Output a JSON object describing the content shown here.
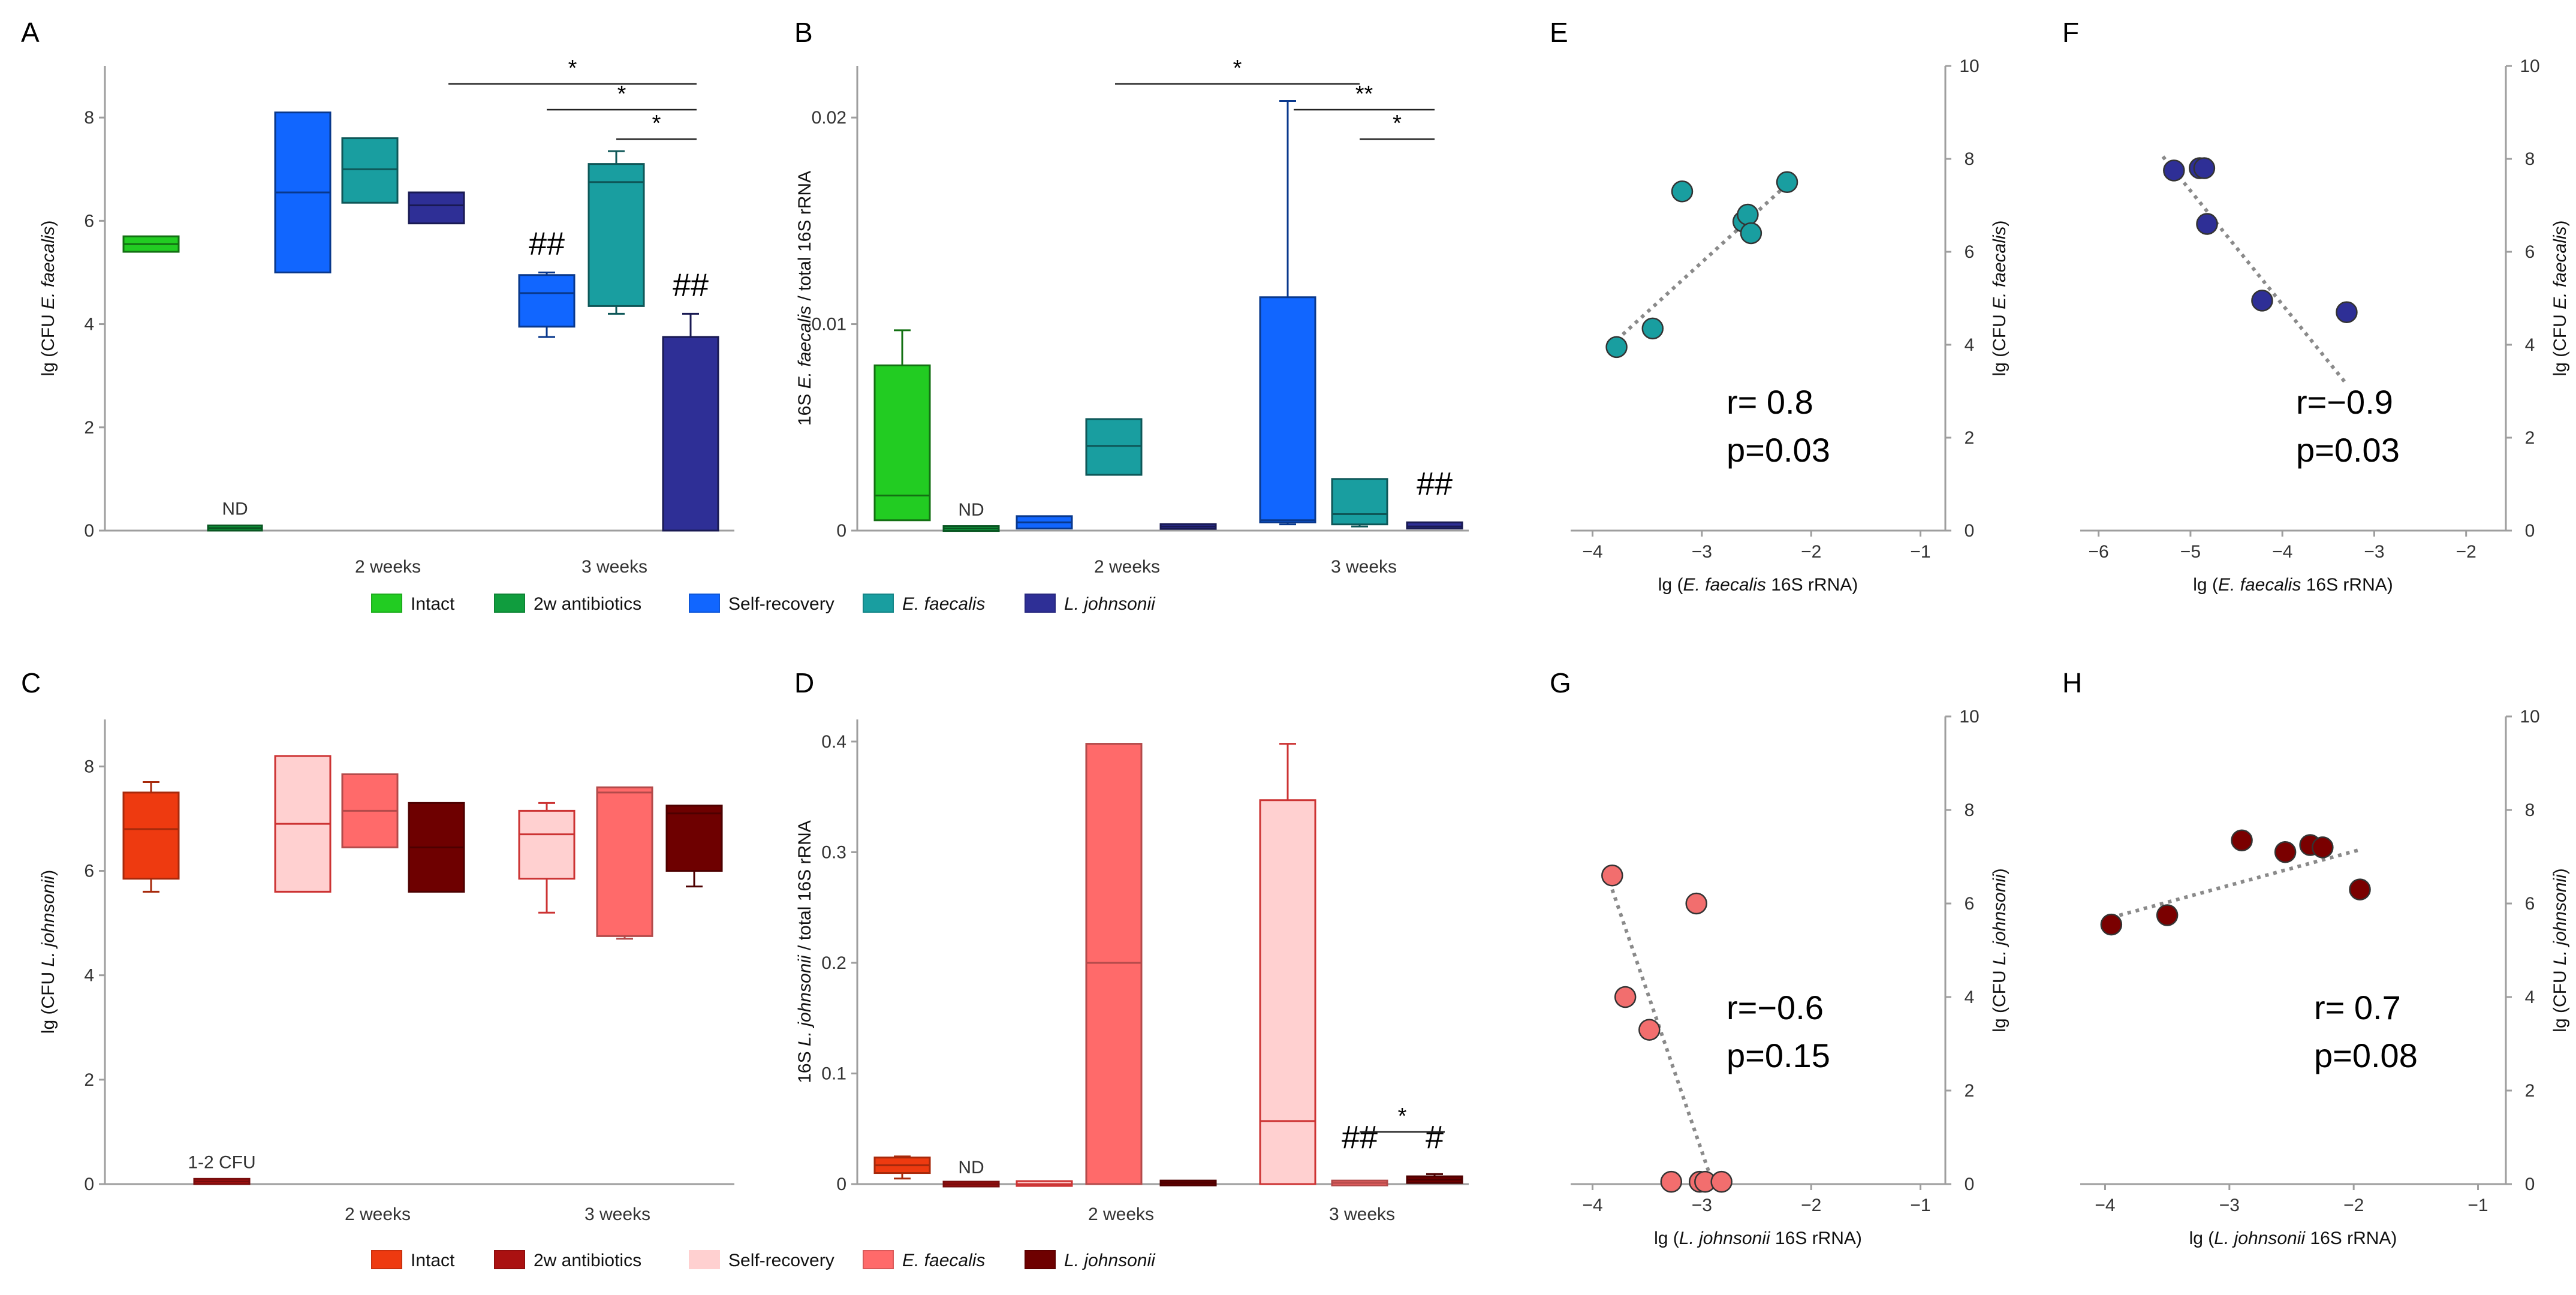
{
  "legend_top": {
    "items": [
      {
        "label": "Intact",
        "color": "#22cc22"
      },
      {
        "label": "2w antibiotics",
        "color": "#109d3e"
      },
      {
        "label": "Self-recovery",
        "color": "#1166ff"
      },
      {
        "label": "E. faecalis",
        "color": "#199ea0",
        "italic": true
      },
      {
        "label": "L. johnsonii",
        "color": "#2e2f96",
        "italic": true
      }
    ]
  },
  "legend_bottom": {
    "items": [
      {
        "label": "Intact",
        "color": "#ee3a10"
      },
      {
        "label": "2w antibiotics",
        "color": "#aa1111"
      },
      {
        "label": "Self-recovery",
        "color": "#ffd0d0"
      },
      {
        "label": "E. faecalis",
        "color": "#ff6a6a",
        "italic": true
      },
      {
        "label": "L. johnsonii",
        "color": "#6e0000",
        "italic": true
      }
    ]
  },
  "chart_data": [
    {
      "panel": "A",
      "type": "box",
      "ylabel": [
        "lg (CFU ",
        "E. faecalis",
        ")"
      ],
      "ylim": [
        0,
        9
      ],
      "yticks": [
        "0",
        "2",
        "4",
        "6",
        "8"
      ],
      "group_labels": [
        "2 weeks",
        "3 weeks"
      ],
      "boxes": [
        {
          "group": "Intact",
          "q1": 5.4,
          "median": 5.55,
          "q3": 5.7,
          "low": 5.4,
          "high": 5.7
        },
        {
          "group": "2w antibiotics",
          "q1": 0,
          "median": 0.05,
          "q3": 0.1,
          "low": 0,
          "high": 0.1,
          "note": "ND"
        },
        {
          "group": "Self-recovery 2w",
          "q1": 5.0,
          "median": 6.55,
          "q3": 8.1,
          "low": 5.0,
          "high": 8.1
        },
        {
          "group": "E. faecalis 2w",
          "q1": 6.35,
          "median": 7.0,
          "q3": 7.6,
          "low": 6.35,
          "high": 7.6
        },
        {
          "group": "L. johnsonii 2w",
          "q1": 5.95,
          "median": 6.3,
          "q3": 6.55,
          "low": 5.95,
          "high": 6.55
        },
        {
          "group": "Self-recovery 3w",
          "q1": 3.95,
          "median": 4.6,
          "q3": 4.95,
          "low": 3.75,
          "high": 5.0,
          "note": "##"
        },
        {
          "group": "E. faecalis 3w",
          "q1": 4.35,
          "median": 6.75,
          "q3": 7.1,
          "low": 4.2,
          "high": 7.35
        },
        {
          "group": "L. johnsonii 3w",
          "q1": 0,
          "median": 0,
          "q3": 3.75,
          "low": 0,
          "high": 4.2,
          "note": "##"
        }
      ],
      "significance": [
        "*",
        "*",
        "*"
      ]
    },
    {
      "panel": "B",
      "type": "box",
      "ylabel": [
        "16S ",
        "E. faecalis",
        " / total 16S rRNA"
      ],
      "ylim": [
        0,
        0.0225
      ],
      "yticks": [
        "0",
        "0.01",
        "0.02"
      ],
      "group_labels": [
        "2 weeks",
        "3 weeks"
      ],
      "boxes": [
        {
          "group": "Intact",
          "q1": 0.0005,
          "median": 0.0017,
          "q3": 0.008,
          "low": 0.0005,
          "high": 0.0097
        },
        {
          "group": "2w antibiotics",
          "q1": 0.0,
          "median": 0.0001,
          "q3": 0.0002,
          "low": 0.0,
          "high": 0.0002,
          "note": "ND"
        },
        {
          "group": "Self-recovery 2w",
          "q1": 0.0001,
          "median": 0.0004,
          "q3": 0.0007,
          "low": 0.0001,
          "high": 0.0007
        },
        {
          "group": "E. faecalis 2w",
          "q1": 0.0027,
          "median": 0.0041,
          "q3": 0.0054,
          "low": 0.0027,
          "high": 0.0054
        },
        {
          "group": "L. johnsonii 2w",
          "q1": 0.0001,
          "median": 0.0002,
          "q3": 0.0003,
          "low": 0.0001,
          "high": 0.0003
        },
        {
          "group": "Self-recovery 3w",
          "q1": 0.0004,
          "median": 0.0005,
          "q3": 0.0113,
          "low": 0.0003,
          "high": 0.0208
        },
        {
          "group": "E. faecalis 3w",
          "q1": 0.0003,
          "median": 0.0008,
          "q3": 0.0025,
          "low": 0.0002,
          "high": 0.0025
        },
        {
          "group": "L. johnsonii 3w",
          "q1": 0.0001,
          "median": 0.0002,
          "q3": 0.0004,
          "low": 0.0001,
          "high": 0.0004,
          "note": "##"
        }
      ],
      "significance": [
        "*",
        "**",
        "*"
      ]
    },
    {
      "panel": "C",
      "type": "box",
      "ylabel": [
        "lg (CFU ",
        "L. johnsonii",
        ")"
      ],
      "ylim": [
        0,
        8.9
      ],
      "yticks": [
        "0",
        "2",
        "4",
        "6",
        "8"
      ],
      "group_labels": [
        "2 weeks",
        "3 weeks"
      ],
      "boxes": [
        {
          "group": "Intact",
          "q1": 5.85,
          "median": 6.8,
          "q3": 7.5,
          "low": 5.6,
          "high": 7.7
        },
        {
          "group": "2w antibiotics",
          "q1": 0,
          "median": 0.05,
          "q3": 0.1,
          "low": 0,
          "high": 0.1,
          "note": "1-2 CFU"
        },
        {
          "group": "Self-recovery 2w",
          "q1": 5.6,
          "median": 6.9,
          "q3": 8.2,
          "low": 5.6,
          "high": 8.2
        },
        {
          "group": "E. faecalis 2w",
          "q1": 6.45,
          "median": 7.15,
          "q3": 7.85,
          "low": 6.45,
          "high": 7.85
        },
        {
          "group": "L. johnsonii 2w",
          "q1": 5.6,
          "median": 6.45,
          "q3": 7.3,
          "low": 5.6,
          "high": 7.3
        },
        {
          "group": "Self-recovery 3w",
          "q1": 5.85,
          "median": 6.7,
          "q3": 7.15,
          "low": 5.2,
          "high": 7.3
        },
        {
          "group": "E. faecalis 3w",
          "q1": 4.75,
          "median": 7.5,
          "q3": 7.6,
          "low": 4.7,
          "high": 7.6
        },
        {
          "group": "L. johnsonii 3w",
          "q1": 6.0,
          "median": 7.1,
          "q3": 7.25,
          "low": 5.7,
          "high": 7.25
        }
      ]
    },
    {
      "panel": "D",
      "type": "box",
      "ylabel": [
        "16S ",
        "L. johnsonii",
        " / total 16S rRNA"
      ],
      "ylim": [
        0,
        0.42
      ],
      "yticks": [
        "0",
        "0.1",
        "0.2",
        "0.3",
        "0.4"
      ],
      "group_labels": [
        "2 weeks",
        "3 weeks"
      ],
      "boxes": [
        {
          "group": "Intact",
          "q1": 0.01,
          "median": 0.017,
          "q3": 0.024,
          "low": 0.005,
          "high": 0.025
        },
        {
          "group": "2w antibiotics",
          "q1": 0.0,
          "median": 0.0,
          "q3": 0.0,
          "low": 0.0,
          "high": 0.0,
          "note": "ND"
        },
        {
          "group": "Self-recovery 2w",
          "q1": 0.0,
          "median": 0.0,
          "q3": 0.001,
          "low": 0.0,
          "high": 0.001
        },
        {
          "group": "E. faecalis 2w",
          "q1": 0.0,
          "median": 0.2,
          "q3": 0.398,
          "low": 0.0,
          "high": 0.398
        },
        {
          "group": "L. johnsonii 2w",
          "q1": 0.0,
          "median": 0.001,
          "q3": 0.002,
          "low": 0.0,
          "high": 0.002
        },
        {
          "group": "Self-recovery 3w",
          "q1": 0.0,
          "median": 0.057,
          "q3": 0.347,
          "low": 0.0,
          "high": 0.398
        },
        {
          "group": "E. faecalis 3w",
          "q1": 0.0,
          "median": 0.001,
          "q3": 0.002,
          "low": 0.0,
          "high": 0.002,
          "note": "##"
        },
        {
          "group": "L. johnsonii 3w",
          "q1": 0.001,
          "median": 0.004,
          "q3": 0.007,
          "low": 0.001,
          "high": 0.009,
          "note": "#"
        }
      ],
      "significance": [
        "*"
      ]
    },
    {
      "panel": "E",
      "type": "scatter",
      "xlabel": [
        "lg (",
        "E. faecalis",
        " 16S rRNA)"
      ],
      "ylabel": [
        "lg (CFU ",
        "E. faecalis",
        ")"
      ],
      "xlim": [
        -4.2,
        -0.8
      ],
      "xticks": [
        "-4",
        "-3",
        "-2",
        "-1"
      ],
      "ylim": [
        0,
        10
      ],
      "yticks": [
        "0",
        "2",
        "4",
        "6",
        "8",
        "10"
      ],
      "color": "#199ea0",
      "points": [
        [
          -3.78,
          3.95
        ],
        [
          -3.45,
          4.35
        ],
        [
          -3.18,
          7.3
        ],
        [
          -2.62,
          6.65
        ],
        [
          -2.58,
          6.8
        ],
        [
          -2.55,
          6.4
        ],
        [
          -2.22,
          7.5
        ]
      ],
      "trend": [
        [
          -3.78,
          4.1
        ],
        [
          -2.22,
          7.45
        ]
      ],
      "stats": [
        "r= 0.8",
        "p=0.03"
      ]
    },
    {
      "panel": "F",
      "type": "scatter",
      "xlabel": [
        "lg (",
        "E. faecalis",
        " 16S rRNA)"
      ],
      "ylabel": [
        "lg (CFU ",
        "E. faecalis",
        ")"
      ],
      "xlim": [
        -6.2,
        -1.6
      ],
      "xticks": [
        "-6",
        "-5",
        "-4",
        "-3",
        "-2"
      ],
      "ylim": [
        0,
        10
      ],
      "yticks": [
        "0",
        "2",
        "4",
        "6",
        "8",
        "10"
      ],
      "color": "#2e2f96",
      "points": [
        [
          -5.18,
          7.75
        ],
        [
          -4.9,
          7.8
        ],
        [
          -4.85,
          7.8
        ],
        [
          -4.82,
          6.6
        ],
        [
          -4.22,
          4.95
        ],
        [
          -3.3,
          4.7
        ]
      ],
      "trend": [
        [
          -5.3,
          8.05
        ],
        [
          -3.3,
          3.15
        ]
      ],
      "stats": [
        "r=−0.9",
        "p=0.03"
      ]
    },
    {
      "panel": "G",
      "type": "scatter",
      "xlabel": [
        "lg (",
        "L. johnsonii",
        " 16S rRNA)"
      ],
      "ylabel": [
        "lg (CFU ",
        "L. johnsonii",
        ")"
      ],
      "xlim": [
        -4.2,
        -0.8
      ],
      "xticks": [
        "-4",
        "-3",
        "-2",
        "-1"
      ],
      "ylim": [
        0,
        10
      ],
      "yticks": [
        "0",
        "2",
        "4",
        "6",
        "8",
        "10"
      ],
      "color": "#f26e6e",
      "points": [
        [
          -3.82,
          6.6
        ],
        [
          -3.7,
          4.0
        ],
        [
          -3.48,
          3.3
        ],
        [
          -3.28,
          0.05
        ],
        [
          -3.05,
          6.0
        ],
        [
          -3.02,
          0.05
        ],
        [
          -2.97,
          0.05
        ],
        [
          -2.82,
          0.05
        ]
      ],
      "trend": [
        [
          -3.82,
          6.3
        ],
        [
          -2.92,
          0.15
        ]
      ],
      "stats": [
        "r=−0.6",
        "p=0.15"
      ]
    },
    {
      "panel": "H",
      "type": "scatter",
      "xlabel": [
        "lg (",
        "L. johnsonii",
        " 16S rRNA)"
      ],
      "ylabel": [
        "lg (CFU ",
        "L. johnsonii",
        ")"
      ],
      "xlim": [
        -4.2,
        -0.8
      ],
      "xticks": [
        "-4",
        "-3",
        "-2",
        "-1"
      ],
      "ylim": [
        0,
        10
      ],
      "yticks": [
        "0",
        "2",
        "4",
        "6",
        "8",
        "10"
      ],
      "color": "#7a0000",
      "points": [
        [
          -3.95,
          5.55
        ],
        [
          -3.5,
          5.75
        ],
        [
          -2.9,
          7.35
        ],
        [
          -2.55,
          7.1
        ],
        [
          -2.35,
          7.25
        ],
        [
          -2.25,
          7.2
        ],
        [
          -1.95,
          6.3
        ]
      ],
      "trend": [
        [
          -3.95,
          5.7
        ],
        [
          -1.95,
          7.15
        ]
      ],
      "stats": [
        "r= 0.7",
        "p=0.08"
      ]
    }
  ]
}
